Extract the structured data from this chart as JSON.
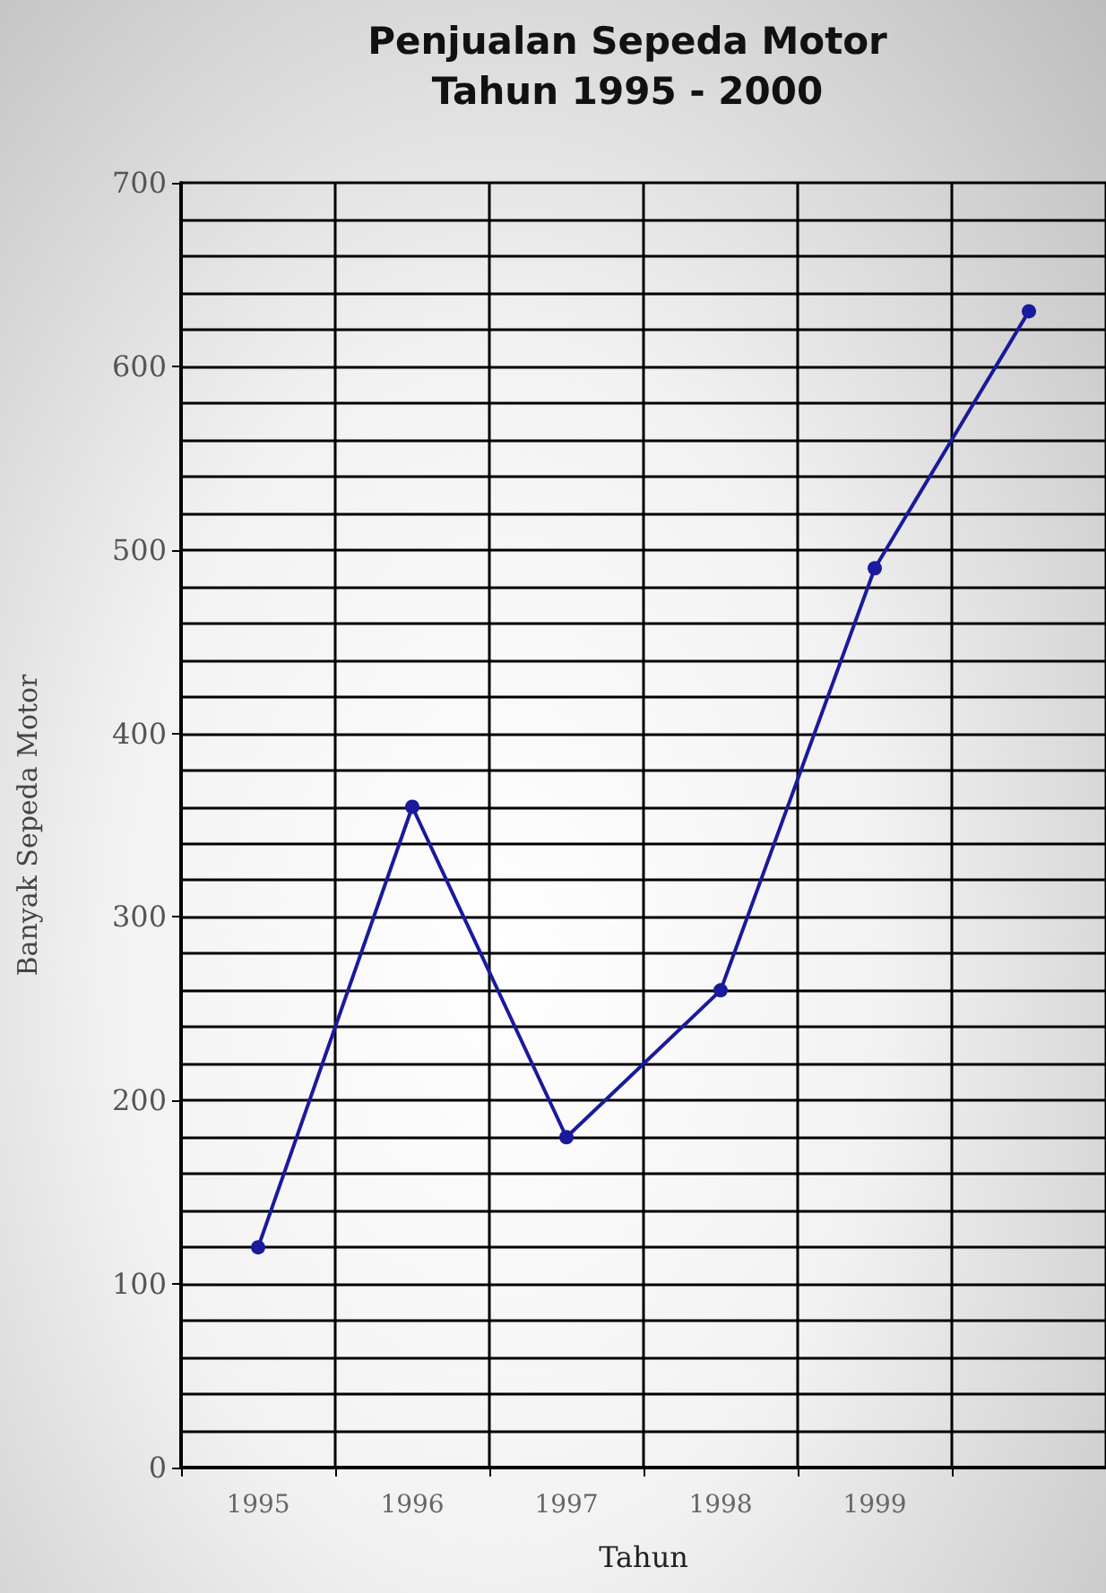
{
  "chart_data": {
    "type": "line",
    "title": "Penjualan Sepeda Motor\nTahun 1995 - 2000",
    "xlabel": "Tahun",
    "ylabel": "Banyak Sepeda Motor",
    "categories": [
      "1995",
      "1996",
      "1997",
      "1998",
      "1999",
      null
    ],
    "series": [
      {
        "color": "#1a1a9c",
        "values": [
          120,
          360,
          180,
          260,
          490,
          630
        ]
      }
    ],
    "ylim": [
      0,
      700
    ],
    "yticks": [
      0,
      100,
      200,
      300,
      400,
      500,
      600,
      700
    ],
    "grid": true,
    "marker": "circle",
    "line_style": "solid"
  }
}
